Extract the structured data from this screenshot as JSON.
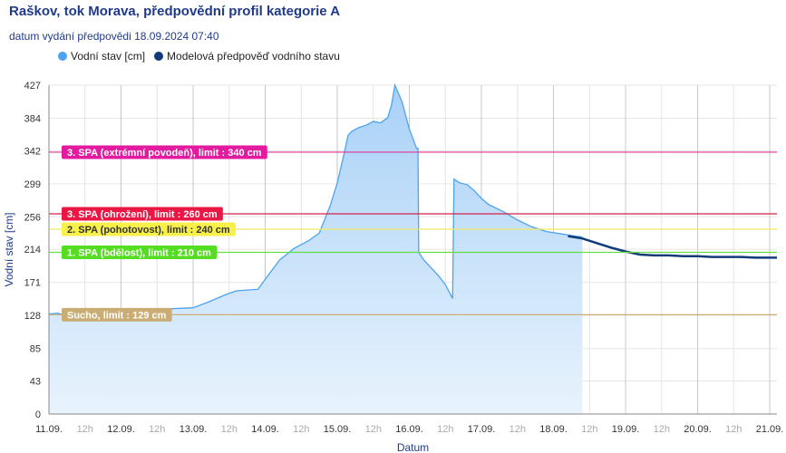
{
  "header": {
    "title": "Raškov, tok Morava, předpovědní profil kategorie A",
    "subtitle": "datum vydání předpovědi 18.09.2024 07:40"
  },
  "legend": {
    "items": [
      {
        "label": "Vodní stav [cm]",
        "color": "#4da3f0"
      },
      {
        "label": "Modelová předpověď vodního stavu",
        "color": "#123b7a"
      }
    ]
  },
  "chart_data": {
    "type": "area",
    "xlabel": "Datum",
    "ylabel": "Vodní stav [cm]",
    "ylim": [
      0,
      427
    ],
    "yticks": [
      0,
      43,
      85,
      128,
      171,
      214,
      256,
      299,
      342,
      384,
      427
    ],
    "xlim": [
      0,
      10.1
    ],
    "xticks": [
      {
        "x": 0,
        "label": "11.09.",
        "major": true
      },
      {
        "x": 0.5,
        "label": "12h",
        "major": false
      },
      {
        "x": 1,
        "label": "12.09.",
        "major": true
      },
      {
        "x": 1.5,
        "label": "12h",
        "major": false
      },
      {
        "x": 2,
        "label": "13.09.",
        "major": true
      },
      {
        "x": 2.5,
        "label": "12h",
        "major": false
      },
      {
        "x": 3,
        "label": "14.09.",
        "major": true
      },
      {
        "x": 3.5,
        "label": "12h",
        "major": false
      },
      {
        "x": 4,
        "label": "15.09.",
        "major": true
      },
      {
        "x": 4.5,
        "label": "12h",
        "major": false
      },
      {
        "x": 5,
        "label": "16.09.",
        "major": true
      },
      {
        "x": 5.5,
        "label": "12h",
        "major": false
      },
      {
        "x": 6,
        "label": "17.09.",
        "major": true
      },
      {
        "x": 6.5,
        "label": "12h",
        "major": false
      },
      {
        "x": 7,
        "label": "18.09.",
        "major": true
      },
      {
        "x": 7.5,
        "label": "12h",
        "major": false
      },
      {
        "x": 8,
        "label": "19.09.",
        "major": true
      },
      {
        "x": 8.5,
        "label": "12h",
        "major": false
      },
      {
        "x": 9,
        "label": "20.09.",
        "major": true
      },
      {
        "x": 9.5,
        "label": "12h",
        "major": false
      },
      {
        "x": 10,
        "label": "21.09.",
        "major": true
      }
    ],
    "limits": [
      {
        "label": "3. SPA (extrémní povodeň), limit : 340 cm",
        "value": 340,
        "line_color": "#e0338f",
        "box_color": "#e31ba0",
        "text_color": "#ffffff"
      },
      {
        "label": "3. SPA (ohrožení), limit : 260 cm",
        "value": 260,
        "line_color": "#d4204a",
        "box_color": "#ea1744",
        "text_color": "#ffffff"
      },
      {
        "label": "2. SPA (pohotovost), limit : 240 cm",
        "value": 240,
        "line_color": "#f0ea60",
        "box_color": "#f7f04a",
        "text_color": "#333333"
      },
      {
        "label": "1. SPA (bdělost), limit : 210 cm",
        "value": 210,
        "line_color": "#66dd44",
        "box_color": "#55dd22",
        "text_color": "#ffffff"
      },
      {
        "label": "Sucho, limit : 129 cm",
        "value": 129,
        "line_color": "#c8a86a",
        "box_color": "#c9ad74",
        "text_color": "#ffffff"
      }
    ],
    "series": [
      {
        "name": "Vodní stav [cm]",
        "color": "#4da3f0",
        "fill": "#cfe5fb",
        "points": [
          [
            0,
            130
          ],
          [
            0.12,
            131
          ],
          [
            0.2,
            129
          ],
          [
            0.5,
            131
          ],
          [
            1.0,
            134
          ],
          [
            1.5,
            136
          ],
          [
            2.0,
            138
          ],
          [
            2.2,
            145
          ],
          [
            2.45,
            155
          ],
          [
            2.6,
            160
          ],
          [
            2.9,
            162
          ],
          [
            3.0,
            175
          ],
          [
            3.2,
            200
          ],
          [
            3.4,
            215
          ],
          [
            3.6,
            225
          ],
          [
            3.75,
            235
          ],
          [
            3.9,
            270
          ],
          [
            4.0,
            300
          ],
          [
            4.1,
            340
          ],
          [
            4.15,
            362
          ],
          [
            4.2,
            367
          ],
          [
            4.3,
            372
          ],
          [
            4.4,
            375
          ],
          [
            4.5,
            380
          ],
          [
            4.6,
            378
          ],
          [
            4.7,
            385
          ],
          [
            4.75,
            400
          ],
          [
            4.8,
            427
          ],
          [
            4.9,
            405
          ],
          [
            5.0,
            370
          ],
          [
            5.1,
            345
          ],
          [
            5.12,
            345
          ],
          [
            5.13,
            210
          ],
          [
            5.2,
            200
          ],
          [
            5.3,
            190
          ],
          [
            5.4,
            180
          ],
          [
            5.5,
            168
          ],
          [
            5.6,
            150
          ],
          [
            5.62,
            305
          ],
          [
            5.7,
            300
          ],
          [
            5.8,
            298
          ],
          [
            5.9,
            290
          ],
          [
            6.0,
            280
          ],
          [
            6.1,
            272
          ],
          [
            6.3,
            263
          ],
          [
            6.5,
            252
          ],
          [
            6.7,
            243
          ],
          [
            6.9,
            237
          ],
          [
            7.1,
            234
          ],
          [
            7.3,
            231
          ],
          [
            7.4,
            230
          ]
        ]
      },
      {
        "name": "Modelová předpověď vodního stavu",
        "color": "#123b7a",
        "points": [
          [
            7.2,
            231
          ],
          [
            7.4,
            228
          ],
          [
            7.6,
            222
          ],
          [
            7.8,
            216
          ],
          [
            8.0,
            211
          ],
          [
            8.2,
            207
          ],
          [
            8.4,
            206
          ],
          [
            8.6,
            206
          ],
          [
            8.8,
            205
          ],
          [
            9.0,
            205
          ],
          [
            9.2,
            204
          ],
          [
            9.4,
            204
          ],
          [
            9.6,
            204
          ],
          [
            9.8,
            203
          ],
          [
            10.1,
            203
          ]
        ]
      }
    ]
  }
}
